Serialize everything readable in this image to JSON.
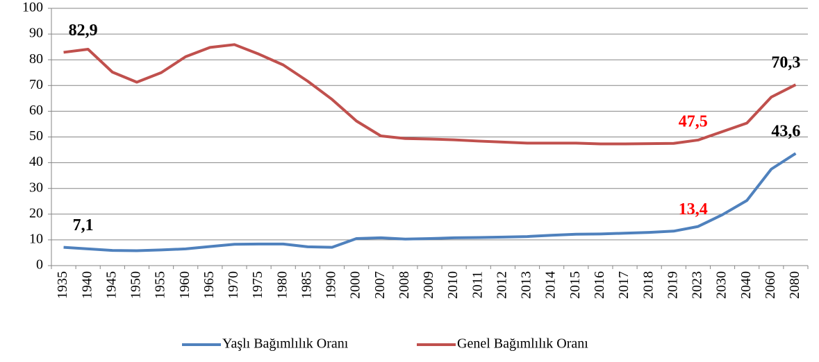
{
  "chart_data": {
    "type": "line",
    "categories": [
      "1935",
      "1940",
      "1945",
      "1950",
      "1955",
      "1960",
      "1965",
      "1970",
      "1975",
      "1980",
      "1985",
      "1990",
      "2000",
      "2007",
      "2008",
      "2009",
      "2010",
      "2011",
      "2012",
      "2013",
      "2014",
      "2015",
      "2016",
      "2017",
      "2018",
      "2019",
      "2023",
      "2030",
      "2040",
      "2060",
      "2080"
    ],
    "series": [
      {
        "name": "Yaşlı Bağımlılık Oranı",
        "color": "#4f81bd",
        "values": [
          7.1,
          6.5,
          5.9,
          5.8,
          6.1,
          6.5,
          7.4,
          8.3,
          8.4,
          8.4,
          7.3,
          7.1,
          10.5,
          10.8,
          10.3,
          10.5,
          10.8,
          10.9,
          11.1,
          11.3,
          11.8,
          12.2,
          12.3,
          12.6,
          12.9,
          13.4,
          15.2,
          19.8,
          25.3,
          37.5,
          43.6
        ],
        "value_labels": [
          "7,1",
          null,
          null,
          null,
          null,
          null,
          null,
          null,
          null,
          null,
          null,
          null,
          null,
          null,
          null,
          null,
          null,
          null,
          null,
          null,
          null,
          null,
          null,
          null,
          null,
          "13,4",
          null,
          null,
          null,
          null,
          "43,6"
        ],
        "value_label_colors": [
          "#000000",
          null,
          null,
          null,
          null,
          null,
          null,
          null,
          null,
          null,
          null,
          null,
          null,
          null,
          null,
          null,
          null,
          null,
          null,
          null,
          null,
          null,
          null,
          null,
          null,
          "#ff0000",
          null,
          null,
          null,
          null,
          "#000000"
        ]
      },
      {
        "name": "Genel Bağımlılık Oranı",
        "color": "#c0504d",
        "values": [
          82.9,
          84.1,
          75.2,
          71.3,
          75.0,
          81.2,
          84.8,
          85.9,
          82.2,
          78.0,
          71.7,
          64.6,
          56.2,
          50.4,
          49.4,
          49.2,
          48.9,
          48.4,
          48.0,
          47.6,
          47.6,
          47.6,
          47.3,
          47.3,
          47.4,
          47.5,
          48.8,
          52.1,
          55.4,
          65.5,
          70.3
        ],
        "value_labels": [
          "82,9",
          null,
          null,
          null,
          null,
          null,
          null,
          null,
          null,
          null,
          null,
          null,
          null,
          null,
          null,
          null,
          null,
          null,
          null,
          null,
          null,
          null,
          null,
          null,
          null,
          "47,5",
          null,
          null,
          null,
          null,
          "70,3"
        ],
        "value_label_colors": [
          "#000000",
          null,
          null,
          null,
          null,
          null,
          null,
          null,
          null,
          null,
          null,
          null,
          null,
          null,
          null,
          null,
          null,
          null,
          null,
          null,
          null,
          null,
          null,
          null,
          null,
          "#ff0000",
          null,
          null,
          null,
          null,
          "#000000"
        ]
      }
    ],
    "ylim": [
      0,
      100
    ],
    "yticks": [
      0,
      10,
      20,
      30,
      40,
      50,
      60,
      70,
      80,
      90,
      100
    ],
    "grid": true,
    "legend": "bottom"
  }
}
